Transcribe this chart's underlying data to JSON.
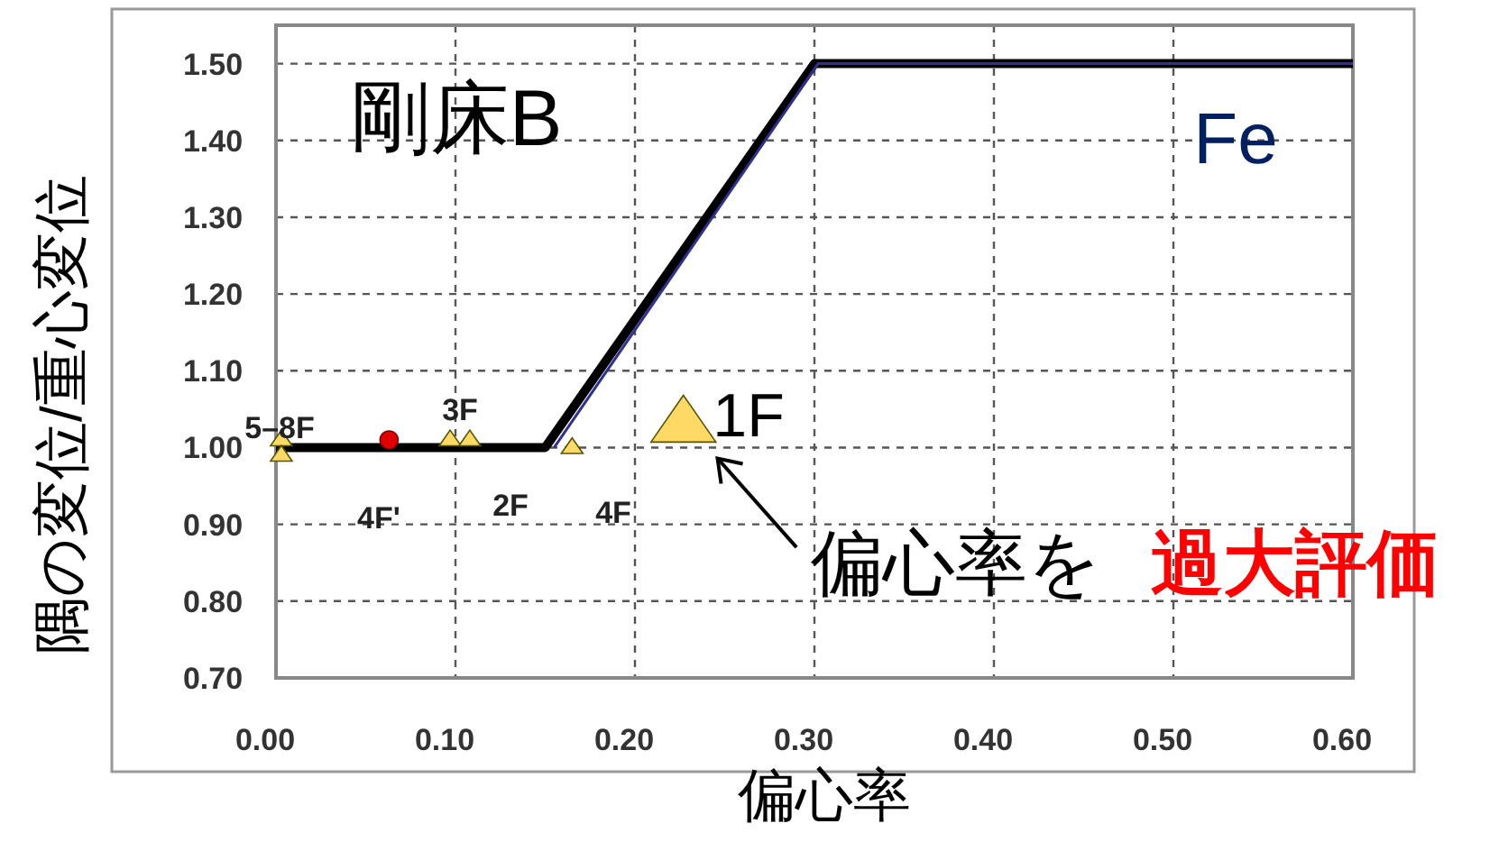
{
  "chart_data": {
    "type": "scatter",
    "xlabel": "偏心率",
    "ylabel": "隅の変位/重心変位",
    "xlim": [
      0,
      0.6
    ],
    "ylim": [
      0.7,
      1.55
    ],
    "xticks": [
      {
        "value": 0,
        "label": "0.00"
      },
      {
        "value": 0.1,
        "label": "0.10"
      },
      {
        "value": 0.2,
        "label": "0.20"
      },
      {
        "value": 0.3,
        "label": "0.30"
      },
      {
        "value": 0.4,
        "label": "0.40"
      },
      {
        "value": 0.5,
        "label": "0.50"
      },
      {
        "value": 0.6,
        "label": "0.60"
      }
    ],
    "yticks": [
      {
        "value": 0.7,
        "label": "0.70"
      },
      {
        "value": 0.8,
        "label": "0.80"
      },
      {
        "value": 0.9,
        "label": "0.90"
      },
      {
        "value": 1.0,
        "label": "1.00"
      },
      {
        "value": 1.1,
        "label": "1.10"
      },
      {
        "value": 1.2,
        "label": "1.20"
      },
      {
        "value": 1.3,
        "label": "1.30"
      },
      {
        "value": 1.4,
        "label": "1.40"
      },
      {
        "value": 1.5,
        "label": "1.50"
      }
    ],
    "grid": true,
    "series": [
      {
        "type": "line",
        "color": "#000000",
        "x": [
          0,
          0.15,
          0.3,
          0.6
        ],
        "values": [
          1.0,
          1.0,
          1.5,
          1.5
        ]
      },
      {
        "name": "Fe",
        "type": "line",
        "color": "#2e3192",
        "x": [
          0.155,
          0.302,
          0.6
        ],
        "values": [
          1.0,
          1.5,
          1.5
        ]
      },
      {
        "type": "scatter",
        "marker": "triangle",
        "color": "#ffd966",
        "x": [
          0.003,
          0.003,
          0.097,
          0.108,
          0.165
        ],
        "values": [
          1.01,
          0.99,
          1.01,
          1.01,
          1.0
        ]
      },
      {
        "type": "scatter",
        "marker": "circle",
        "color": "#e00000",
        "x": [
          0.063
        ],
        "values": [
          1.01
        ]
      },
      {
        "type": "scatter",
        "marker": "triangle",
        "color": "#ffd966",
        "x": [
          0.227
        ],
        "values": [
          1.03
        ]
      }
    ],
    "annotations": [
      "剛床B",
      "5–8F",
      "3F",
      "4F'",
      "2F",
      "4F",
      "1F",
      "偏心率を",
      "過大評価"
    ]
  }
}
